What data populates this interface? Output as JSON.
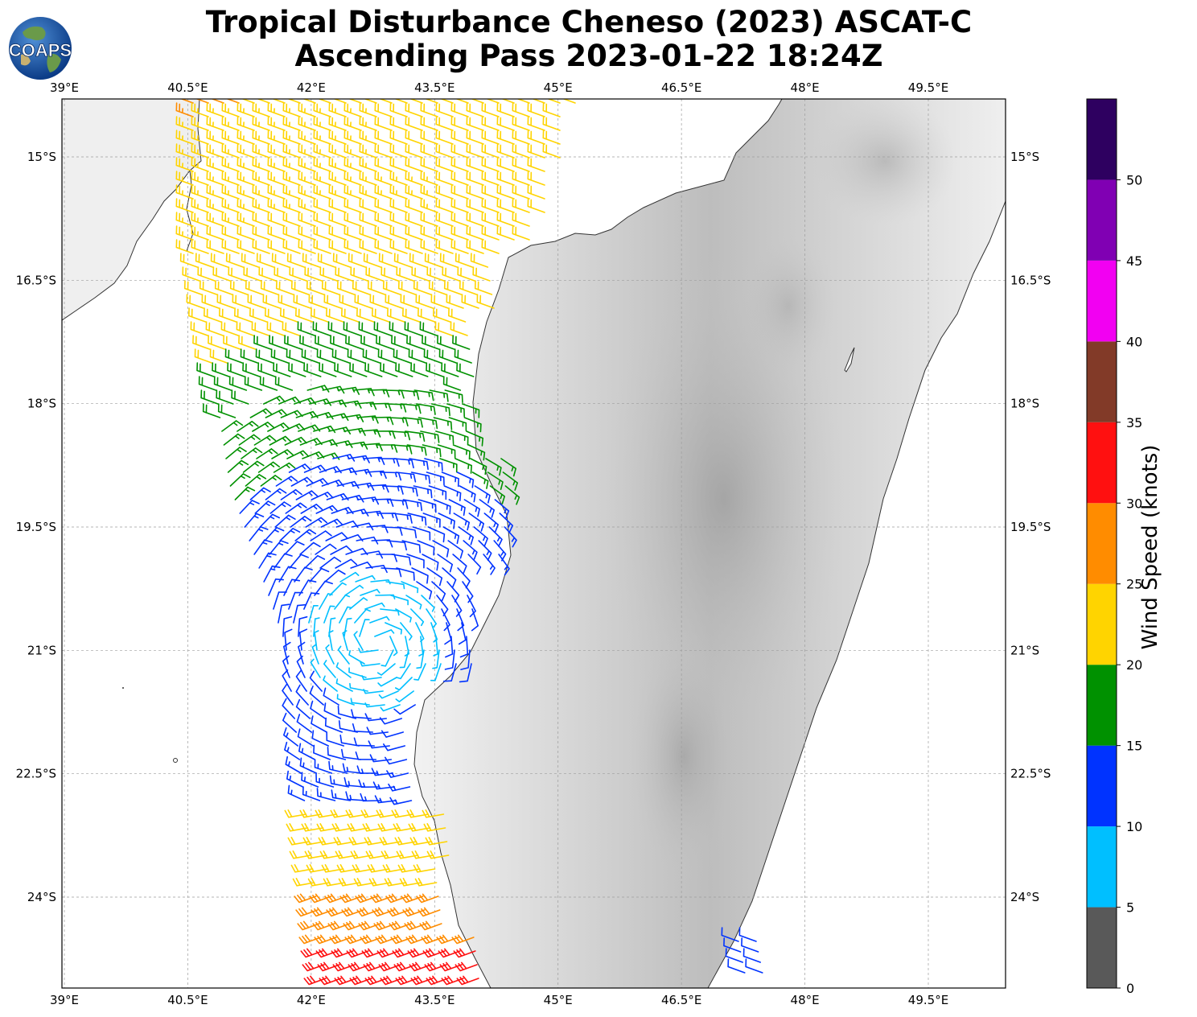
{
  "title_line1": "Tropical Disturbance Cheneso (2023) ASCAT-C",
  "title_line2": "Ascending Pass 2023-01-22 18:24Z",
  "logo_text": "COAPS",
  "lon_ticks": [
    "39°E",
    "40.5°E",
    "42°E",
    "43.5°E",
    "45°E",
    "46.5°E",
    "48°E",
    "49.5°E"
  ],
  "lat_ticks": [
    "15°S",
    "16.5°S",
    "18°S",
    "19.5°S",
    "21°S",
    "22.5°S",
    "24°S"
  ],
  "colorbar": {
    "label": "Wind Speed (knots)",
    "ticks": [
      "0",
      "5",
      "10",
      "15",
      "20",
      "25",
      "30",
      "35",
      "40",
      "45",
      "50"
    ],
    "bins": [
      {
        "min": 0,
        "max": 5,
        "color": "#595959"
      },
      {
        "min": 5,
        "max": 10,
        "color": "#00bfff"
      },
      {
        "min": 10,
        "max": 15,
        "color": "#0033ff"
      },
      {
        "min": 15,
        "max": 20,
        "color": "#009100"
      },
      {
        "min": 20,
        "max": 25,
        "color": "#ffd400"
      },
      {
        "min": 25,
        "max": 30,
        "color": "#ff8c00"
      },
      {
        "min": 30,
        "max": 35,
        "color": "#ff1010"
      },
      {
        "min": 35,
        "max": 40,
        "color": "#823a28"
      },
      {
        "min": 40,
        "max": 45,
        "color": "#f200f2"
      },
      {
        "min": 45,
        "max": 50,
        "color": "#8000b3"
      },
      {
        "min": 50,
        "max": 55,
        "color": "#2e0060"
      }
    ]
  },
  "map_extent": {
    "lon_min": 39.0,
    "lon_max": 50.45,
    "lat_min": -25.2,
    "lat_max": -14.3
  },
  "gridline_style": "dashed"
}
